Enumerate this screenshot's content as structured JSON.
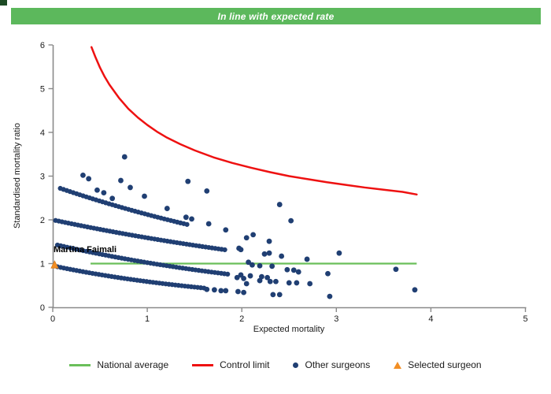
{
  "banner": {
    "text": "In line with expected rate",
    "background": "#5cb85c",
    "text_color": "#ffffff"
  },
  "ui": {
    "corner_fragment_color": "#1c4a24",
    "axis_color": "#8a8a8a",
    "tick_text_color": "#1a1a1a"
  },
  "chart_data": {
    "type": "scatter",
    "title": "In line with expected rate",
    "xlabel": "Expected mortality",
    "ylabel": "Standardised mortality ratio",
    "xlim": [
      0,
      5
    ],
    "ylim": [
      0,
      6
    ],
    "xticks": [
      0,
      1,
      2,
      3,
      4,
      5
    ],
    "yticks": [
      0,
      1,
      2,
      3,
      4,
      5,
      6
    ],
    "grid": false,
    "legend_position": "bottom",
    "national_average": {
      "label": "National average",
      "color": "#6abf5a",
      "y": 1.0,
      "x_start": 0.4,
      "x_end": 3.85
    },
    "control_limit": {
      "label": "Control limit",
      "color": "#ee1111",
      "points": [
        [
          0.41,
          5.95
        ],
        [
          0.45,
          5.73
        ],
        [
          0.5,
          5.48
        ],
        [
          0.55,
          5.27
        ],
        [
          0.6,
          5.09
        ],
        [
          0.7,
          4.79
        ],
        [
          0.8,
          4.54
        ],
        [
          0.9,
          4.34
        ],
        [
          1.0,
          4.17
        ],
        [
          1.1,
          4.02
        ],
        [
          1.2,
          3.89
        ],
        [
          1.35,
          3.73
        ],
        [
          1.5,
          3.59
        ],
        [
          1.7,
          3.43
        ],
        [
          1.9,
          3.3
        ],
        [
          2.1,
          3.19
        ],
        [
          2.3,
          3.09
        ],
        [
          2.5,
          3.0
        ],
        [
          2.7,
          2.93
        ],
        [
          2.9,
          2.86
        ],
        [
          3.1,
          2.8
        ],
        [
          3.3,
          2.74
        ],
        [
          3.5,
          2.69
        ],
        [
          3.7,
          2.64
        ],
        [
          3.85,
          2.58
        ]
      ]
    },
    "selected_surgeon": {
      "label": "Selected surgeon",
      "name": "Martina Faimali",
      "color": "#f28e24",
      "x": 0.02,
      "y": 0.97
    },
    "other_surgeons": {
      "label": "Other surgeons",
      "color": "#203f73",
      "bands": [
        {
          "y0": 2.78,
          "k": 0.27,
          "x_start": 0.08,
          "x_end": 1.42,
          "n": 40
        },
        {
          "y0": 2.0,
          "k": 0.23,
          "x_start": 0.03,
          "x_end": 1.82,
          "n": 54
        },
        {
          "y0": 1.45,
          "k": 0.35,
          "x_start": 0.05,
          "x_end": 1.85,
          "n": 54
        },
        {
          "y0": 0.95,
          "k": 0.48,
          "x_start": 0.05,
          "x_end": 1.6,
          "n": 47
        }
      ],
      "points": [
        [
          0.32,
          3.02
        ],
        [
          0.38,
          2.94
        ],
        [
          0.47,
          2.68
        ],
        [
          0.54,
          2.62
        ],
        [
          0.63,
          2.49
        ],
        [
          0.72,
          2.9
        ],
        [
          0.76,
          3.44
        ],
        [
          0.82,
          2.74
        ],
        [
          0.97,
          2.54
        ],
        [
          1.21,
          2.26
        ],
        [
          1.41,
          2.06
        ],
        [
          1.43,
          2.88
        ],
        [
          1.47,
          2.02
        ],
        [
          1.63,
          2.66
        ],
        [
          1.65,
          1.91
        ],
        [
          1.83,
          1.77
        ],
        [
          2.12,
          1.66
        ],
        [
          2.4,
          2.35
        ],
        [
          2.52,
          1.98
        ],
        [
          2.05,
          1.59
        ],
        [
          2.29,
          1.51
        ],
        [
          1.97,
          1.35
        ],
        [
          1.99,
          1.32
        ],
        [
          2.24,
          1.22
        ],
        [
          2.29,
          1.24
        ],
        [
          2.42,
          1.17
        ],
        [
          2.69,
          1.1
        ],
        [
          3.03,
          1.24
        ],
        [
          2.07,
          1.03
        ],
        [
          2.11,
          0.97
        ],
        [
          2.19,
          0.95
        ],
        [
          2.32,
          0.94
        ],
        [
          2.48,
          0.86
        ],
        [
          2.55,
          0.85
        ],
        [
          2.6,
          0.81
        ],
        [
          2.91,
          0.77
        ],
        [
          3.63,
          0.87
        ],
        [
          1.95,
          0.68
        ],
        [
          1.99,
          0.74
        ],
        [
          2.02,
          0.66
        ],
        [
          2.05,
          0.54
        ],
        [
          2.09,
          0.72
        ],
        [
          2.19,
          0.61
        ],
        [
          2.21,
          0.7
        ],
        [
          2.27,
          0.68
        ],
        [
          2.3,
          0.59
        ],
        [
          2.36,
          0.59
        ],
        [
          2.5,
          0.56
        ],
        [
          2.58,
          0.56
        ],
        [
          2.72,
          0.54
        ],
        [
          1.63,
          0.41
        ],
        [
          1.71,
          0.4
        ],
        [
          1.78,
          0.38
        ],
        [
          1.83,
          0.38
        ],
        [
          1.96,
          0.36
        ],
        [
          2.02,
          0.34
        ],
        [
          2.33,
          0.29
        ],
        [
          2.4,
          0.29
        ],
        [
          2.93,
          0.25
        ],
        [
          3.83,
          0.4
        ]
      ]
    }
  },
  "legend": {
    "items": [
      {
        "label": "National average",
        "marker": "line",
        "color": "#6abf5a"
      },
      {
        "label": "Control limit",
        "marker": "line",
        "color": "#ee1111"
      },
      {
        "label": "Other surgeons",
        "marker": "dot",
        "color": "#203f73"
      },
      {
        "label": "Selected surgeon",
        "marker": "triangle",
        "color": "#f28e24"
      }
    ]
  }
}
